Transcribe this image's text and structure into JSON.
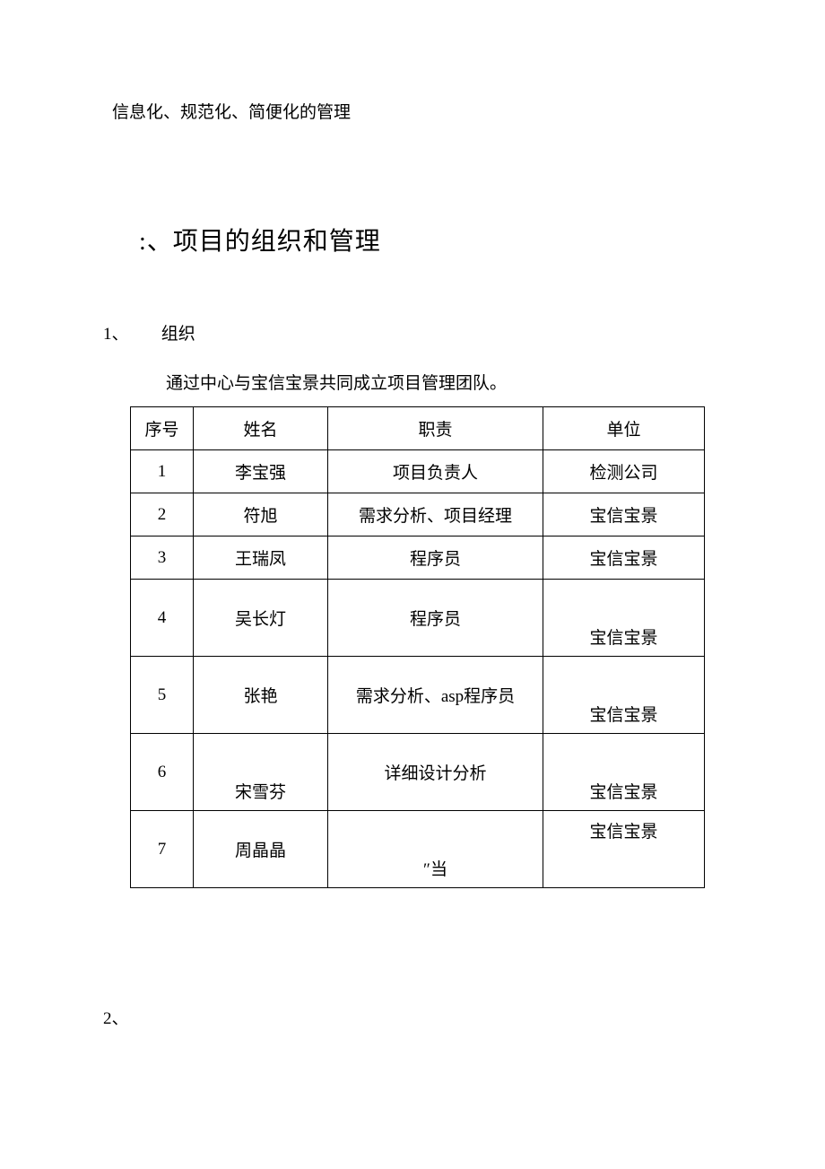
{
  "intro": "信息化、规范化、简便化的管理",
  "heading": ":、项目的组织和管理",
  "section1": {
    "num": "1、",
    "label": "组织"
  },
  "body": "通过中心与宝信宝景共同成立项目管理团队。",
  "table": {
    "headers": {
      "c0": "序号",
      "c1": "姓名",
      "c2": "职责",
      "c3": "单位"
    },
    "rows": [
      {
        "n": "1",
        "name": "李宝强",
        "role": "项目负责人",
        "org": "检测公司"
      },
      {
        "n": "2",
        "name": "符旭",
        "role": "需求分析、项目经理",
        "org": "宝信宝景"
      },
      {
        "n": "3",
        "name": "王瑞凤",
        "role": "程序员",
        "org": "宝信宝景"
      },
      {
        "n": "4",
        "name": "吴长灯",
        "role": "程序员",
        "org": "宝信宝景"
      },
      {
        "n": "5",
        "name": "张艳",
        "role": "需求分析、asp程序员",
        "org": "宝信宝景"
      },
      {
        "n": "6",
        "name": "宋雪芬",
        "role": "详细设计分析",
        "org": "宝信宝景"
      },
      {
        "n": "7",
        "name": "周晶晶",
        "role": "″当",
        "org": "宝信宝景"
      }
    ]
  },
  "section2": {
    "num": "2、"
  },
  "colors": {
    "text": "#000000",
    "bg": "#ffffff",
    "border": "#000000"
  },
  "fonts": {
    "body_size": 19,
    "heading_size": 28,
    "family": "SimSun"
  }
}
